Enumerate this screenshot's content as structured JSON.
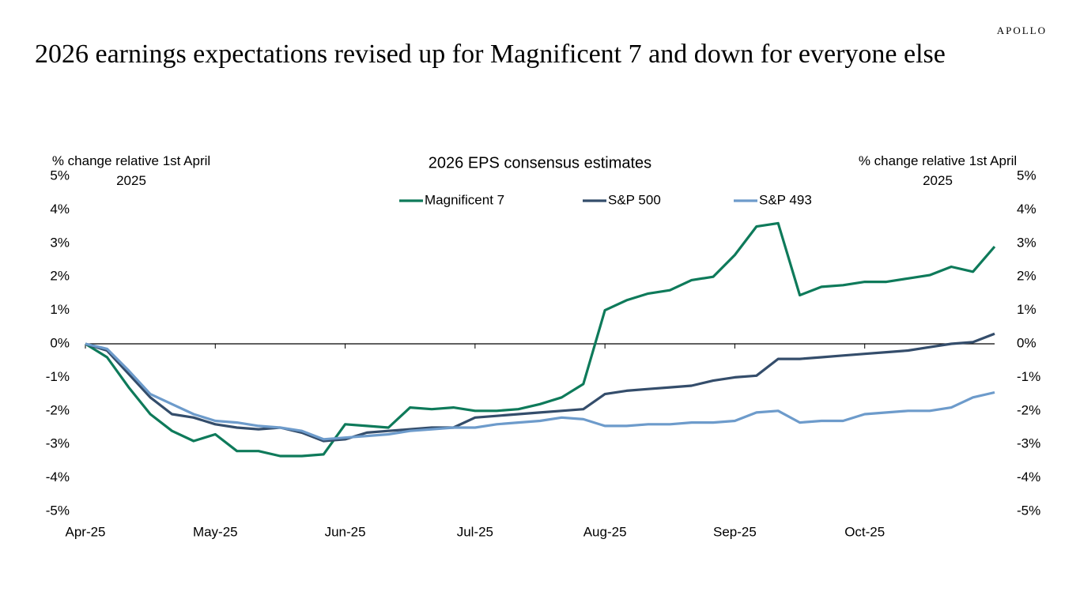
{
  "brand": "APOLLO",
  "chart_data": {
    "type": "line",
    "title": "2026 earnings expectations revised up for Magnificent 7 and down for everyone else",
    "subtitle": "2026 EPS consensus estimates",
    "y_label": "% change relative 1st April 2025",
    "y2_label": "% change relative 1st April 2025",
    "categories": [
      "Apr-25",
      null,
      null,
      null,
      null,
      null,
      "May-25",
      null,
      null,
      null,
      null,
      null,
      "Jun-25",
      null,
      null,
      null,
      null,
      null,
      "Jul-25",
      null,
      null,
      null,
      null,
      null,
      "Aug-25",
      null,
      null,
      null,
      null,
      null,
      "Sep-25",
      null,
      null,
      null,
      null,
      null,
      "Oct-25",
      null,
      null,
      null,
      null,
      null,
      null
    ],
    "series": [
      {
        "name": "Magnificent 7",
        "color": "#0e7a5a",
        "values": [
          0,
          -0.4,
          -1.3,
          -2.1,
          -2.6,
          -2.9,
          -2.7,
          -3.2,
          -3.2,
          -3.35,
          -3.35,
          -3.3,
          -2.4,
          -2.45,
          -2.5,
          -1.9,
          -1.95,
          -1.9,
          -2.0,
          -2.0,
          -1.95,
          -1.8,
          -1.6,
          -1.2,
          1.0,
          1.3,
          1.5,
          1.6,
          1.9,
          2.0,
          2.65,
          3.5,
          3.6,
          1.45,
          1.7,
          1.75,
          1.85,
          1.85,
          1.95,
          2.05,
          2.3,
          2.15,
          2.9
        ]
      },
      {
        "name": "S&P 500",
        "color": "#344d6b",
        "values": [
          0,
          -0.2,
          -0.9,
          -1.6,
          -2.1,
          -2.2,
          -2.4,
          -2.5,
          -2.55,
          -2.5,
          -2.65,
          -2.9,
          -2.85,
          -2.65,
          -2.6,
          -2.55,
          -2.5,
          -2.5,
          -2.2,
          -2.15,
          -2.1,
          -2.05,
          -2.0,
          -1.95,
          -1.5,
          -1.4,
          -1.35,
          -1.3,
          -1.25,
          -1.1,
          -1.0,
          -0.95,
          -0.45,
          -0.45,
          -0.4,
          -0.35,
          -0.3,
          -0.25,
          -0.2,
          -0.1,
          0.0,
          0.05,
          0.3
        ]
      },
      {
        "name": "S&P 493",
        "color": "#6d9bcb",
        "values": [
          0,
          -0.15,
          -0.8,
          -1.5,
          -1.8,
          -2.1,
          -2.3,
          -2.35,
          -2.45,
          -2.5,
          -2.6,
          -2.85,
          -2.8,
          -2.75,
          -2.7,
          -2.6,
          -2.55,
          -2.5,
          -2.5,
          -2.4,
          -2.35,
          -2.3,
          -2.2,
          -2.25,
          -2.45,
          -2.45,
          -2.4,
          -2.4,
          -2.35,
          -2.35,
          -2.3,
          -2.05,
          -2.0,
          -2.35,
          -2.3,
          -2.3,
          -2.1,
          -2.05,
          -2.0,
          -2.0,
          -1.9,
          -1.6,
          -1.45
        ]
      }
    ],
    "ylim": [
      -5,
      5
    ],
    "yticks": [
      {
        "value": -5,
        "label": "-5%"
      },
      {
        "value": -4,
        "label": "-4%"
      },
      {
        "value": -3,
        "label": "-3%"
      },
      {
        "value": -2,
        "label": "-2%"
      },
      {
        "value": -1,
        "label": "-1%"
      },
      {
        "value": 0,
        "label": "0%"
      },
      {
        "value": 1,
        "label": "1%"
      },
      {
        "value": 2,
        "label": "2%"
      },
      {
        "value": 3,
        "label": "3%"
      },
      {
        "value": 4,
        "label": "4%"
      },
      {
        "value": 5,
        "label": "5%"
      }
    ],
    "y2lim": [
      -5,
      5
    ],
    "y2ticks": [
      {
        "value": -5,
        "label": "-5%"
      },
      {
        "value": -4,
        "label": "-4%"
      },
      {
        "value": -3,
        "label": "-3%"
      },
      {
        "value": -2,
        "label": "-2%"
      },
      {
        "value": -1,
        "label": "-1%"
      },
      {
        "value": 0,
        "label": "0%"
      },
      {
        "value": 1,
        "label": "1%"
      },
      {
        "value": 2,
        "label": "2%"
      },
      {
        "value": 3,
        "label": "3%"
      },
      {
        "value": 4,
        "label": "4%"
      },
      {
        "value": 5,
        "label": "5%"
      }
    ],
    "grid": false,
    "legend": "top"
  }
}
